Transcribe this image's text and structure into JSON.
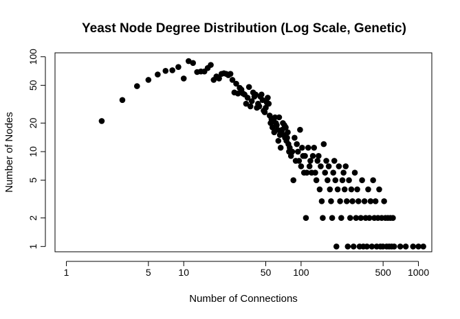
{
  "chart_data": {
    "type": "scatter",
    "title": "Yeast Node Degree Distribution (Log Scale, Genetic)",
    "xlabel": "Number of Connections",
    "ylabel": "Number of Nodes",
    "x_scale": "log",
    "y_scale": "log",
    "xlim": [
      0.8,
      1300
    ],
    "ylim": [
      0.88,
      110
    ],
    "x_ticks": [
      1,
      5,
      10,
      50,
      100,
      500,
      1000
    ],
    "y_ticks": [
      1,
      2,
      5,
      10,
      20,
      50,
      100
    ],
    "x_tick_labels": [
      "1",
      "5",
      "10",
      "50",
      "100",
      "500",
      "1000"
    ],
    "y_tick_labels": [
      "1",
      "2",
      "5",
      "10",
      "20",
      "50",
      "100"
    ],
    "grid": false,
    "legend": "none",
    "marker_color": "#000000",
    "points": [
      [
        2,
        21
      ],
      [
        3,
        35
      ],
      [
        4,
        49
      ],
      [
        5,
        57
      ],
      [
        6,
        65
      ],
      [
        7,
        71
      ],
      [
        8,
        72
      ],
      [
        9,
        78
      ],
      [
        10,
        59
      ],
      [
        11,
        90
      ],
      [
        12,
        86
      ],
      [
        13,
        69
      ],
      [
        14,
        70
      ],
      [
        15,
        70
      ],
      [
        16,
        76
      ],
      [
        17,
        82
      ],
      [
        18,
        57
      ],
      [
        19,
        62
      ],
      [
        20,
        59
      ],
      [
        21,
        66
      ],
      [
        22,
        67
      ],
      [
        23,
        66
      ],
      [
        24,
        64
      ],
      [
        25,
        66
      ],
      [
        26,
        57
      ],
      [
        27,
        42
      ],
      [
        28,
        52
      ],
      [
        29,
        41
      ],
      [
        30,
        47
      ],
      [
        31,
        45
      ],
      [
        32,
        41
      ],
      [
        33,
        40
      ],
      [
        34,
        32
      ],
      [
        35,
        37
      ],
      [
        36,
        48
      ],
      [
        37,
        30
      ],
      [
        38,
        34
      ],
      [
        39,
        42
      ],
      [
        40,
        38
      ],
      [
        41,
        40
      ],
      [
        42,
        29
      ],
      [
        43,
        32
      ],
      [
        44,
        30
      ],
      [
        45,
        38
      ],
      [
        46,
        40
      ],
      [
        47,
        35
      ],
      [
        48,
        27
      ],
      [
        49,
        26
      ],
      [
        50,
        29
      ],
      [
        51,
        33
      ],
      [
        52,
        37
      ],
      [
        53,
        32
      ],
      [
        54,
        24
      ],
      [
        55,
        20
      ],
      [
        56,
        22
      ],
      [
        57,
        18
      ],
      [
        58,
        21
      ],
      [
        59,
        16
      ],
      [
        60,
        23
      ],
      [
        61,
        20
      ],
      [
        62,
        19
      ],
      [
        63,
        17
      ],
      [
        64,
        13
      ],
      [
        65,
        23
      ],
      [
        66,
        15
      ],
      [
        67,
        11
      ],
      [
        68,
        16
      ],
      [
        69,
        17
      ],
      [
        70,
        20
      ],
      [
        71,
        15
      ],
      [
        72,
        19
      ],
      [
        73,
        14
      ],
      [
        74,
        18
      ],
      [
        75,
        13
      ],
      [
        76,
        14
      ],
      [
        77,
        16
      ],
      [
        78,
        12
      ],
      [
        79,
        10
      ],
      [
        80,
        11
      ],
      [
        82,
        9
      ],
      [
        84,
        10
      ],
      [
        86,
        5
      ],
      [
        88,
        14
      ],
      [
        90,
        8
      ],
      [
        92,
        12
      ],
      [
        94,
        10
      ],
      [
        96,
        8
      ],
      [
        98,
        17
      ],
      [
        100,
        7
      ],
      [
        102,
        11
      ],
      [
        104,
        9
      ],
      [
        106,
        6
      ],
      [
        108,
        9
      ],
      [
        110,
        2
      ],
      [
        112,
        6
      ],
      [
        115,
        11
      ],
      [
        118,
        7
      ],
      [
        120,
        8
      ],
      [
        123,
        6
      ],
      [
        126,
        9
      ],
      [
        129,
        11
      ],
      [
        132,
        6
      ],
      [
        135,
        5
      ],
      [
        138,
        8
      ],
      [
        141,
        9
      ],
      [
        144,
        4
      ],
      [
        147,
        7
      ],
      [
        150,
        3
      ],
      [
        153,
        2
      ],
      [
        156,
        12
      ],
      [
        160,
        6
      ],
      [
        164,
        8
      ],
      [
        168,
        5
      ],
      [
        172,
        7
      ],
      [
        176,
        4
      ],
      [
        180,
        3
      ],
      [
        184,
        2
      ],
      [
        188,
        6
      ],
      [
        192,
        8
      ],
      [
        196,
        5
      ],
      [
        200,
        1
      ],
      [
        205,
        4
      ],
      [
        210,
        7
      ],
      [
        215,
        3
      ],
      [
        220,
        2
      ],
      [
        225,
        5
      ],
      [
        230,
        6
      ],
      [
        235,
        4
      ],
      [
        240,
        7
      ],
      [
        245,
        3
      ],
      [
        250,
        1
      ],
      [
        256,
        5
      ],
      [
        262,
        2
      ],
      [
        268,
        4
      ],
      [
        274,
        3
      ],
      [
        280,
        1
      ],
      [
        287,
        6
      ],
      [
        294,
        2
      ],
      [
        301,
        4
      ],
      [
        308,
        3
      ],
      [
        315,
        1
      ],
      [
        323,
        2
      ],
      [
        331,
        5
      ],
      [
        339,
        1
      ],
      [
        347,
        3
      ],
      [
        355,
        2
      ],
      [
        364,
        1
      ],
      [
        373,
        4
      ],
      [
        382,
        2
      ],
      [
        391,
        3
      ],
      [
        401,
        1
      ],
      [
        411,
        5
      ],
      [
        421,
        2
      ],
      [
        431,
        3
      ],
      [
        441,
        1
      ],
      [
        452,
        2
      ],
      [
        463,
        4
      ],
      [
        474,
        1
      ],
      [
        486,
        2
      ],
      [
        498,
        1
      ],
      [
        510,
        3
      ],
      [
        523,
        2
      ],
      [
        536,
        1
      ],
      [
        549,
        2
      ],
      [
        563,
        1
      ],
      [
        577,
        2
      ],
      [
        591,
        1
      ],
      [
        606,
        2
      ],
      [
        621,
        1
      ],
      [
        700,
        1
      ],
      [
        780,
        1
      ],
      [
        900,
        1
      ],
      [
        1000,
        1
      ],
      [
        1100,
        1
      ]
    ]
  }
}
